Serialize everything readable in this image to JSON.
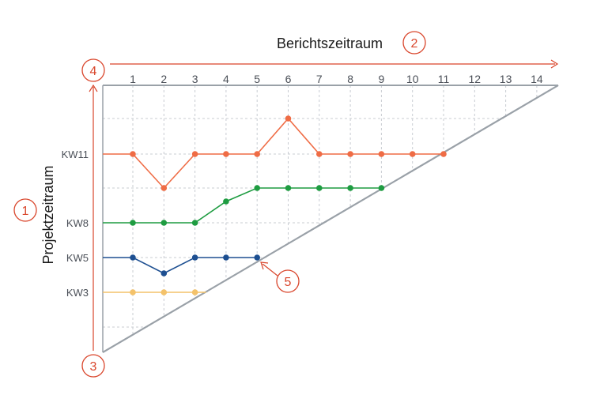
{
  "title_x": "Berichtszeitraum",
  "title_y": "Projektzeitraum",
  "x_ticks": [
    "1",
    "2",
    "3",
    "4",
    "5",
    "6",
    "7",
    "8",
    "9",
    "10",
    "11",
    "12",
    "13",
    "14"
  ],
  "y_labels": [
    "KW11",
    "KW8",
    "KW5",
    "KW3"
  ],
  "markers": [
    "1",
    "2",
    "3",
    "4",
    "5"
  ],
  "colors": {
    "accent": "#d9452b",
    "grid": "#c8ccd2",
    "diagonal": "#9aa1a8",
    "series_orange": "#ef6c45",
    "series_green": "#1e9c41",
    "series_blue": "#1d4f91",
    "series_yellow": "#f4c26a"
  },
  "chart_data": {
    "type": "line",
    "xlabel": "Berichtszeitraum",
    "ylabel": "Projektzeitraum",
    "x_ticks": [
      1,
      2,
      3,
      4,
      5,
      6,
      7,
      8,
      9,
      10,
      11,
      12,
      13,
      14
    ],
    "y_tick_labels": [
      "KW3",
      "KW5",
      "KW8",
      "KW11"
    ],
    "series": [
      {
        "label": "KW11",
        "x": [
          1,
          2,
          3,
          4,
          5,
          6,
          7,
          8,
          9,
          10,
          11
        ],
        "y": [
          11,
          10,
          11,
          11,
          11,
          12,
          11,
          11,
          11,
          11,
          11
        ]
      },
      {
        "label": "KW8",
        "x": [
          1,
          2,
          3,
          4,
          5,
          6,
          7,
          8,
          9
        ],
        "y": [
          8,
          8,
          8,
          9,
          10,
          10,
          10,
          10,
          10
        ]
      },
      {
        "label": "KW5",
        "x": [
          1,
          2,
          3,
          4,
          5
        ],
        "y": [
          5,
          4.5,
          5,
          5,
          5
        ]
      },
      {
        "label": "KW3",
        "x": [
          1,
          2,
          3
        ],
        "y": [
          3,
          3,
          3
        ]
      }
    ]
  }
}
